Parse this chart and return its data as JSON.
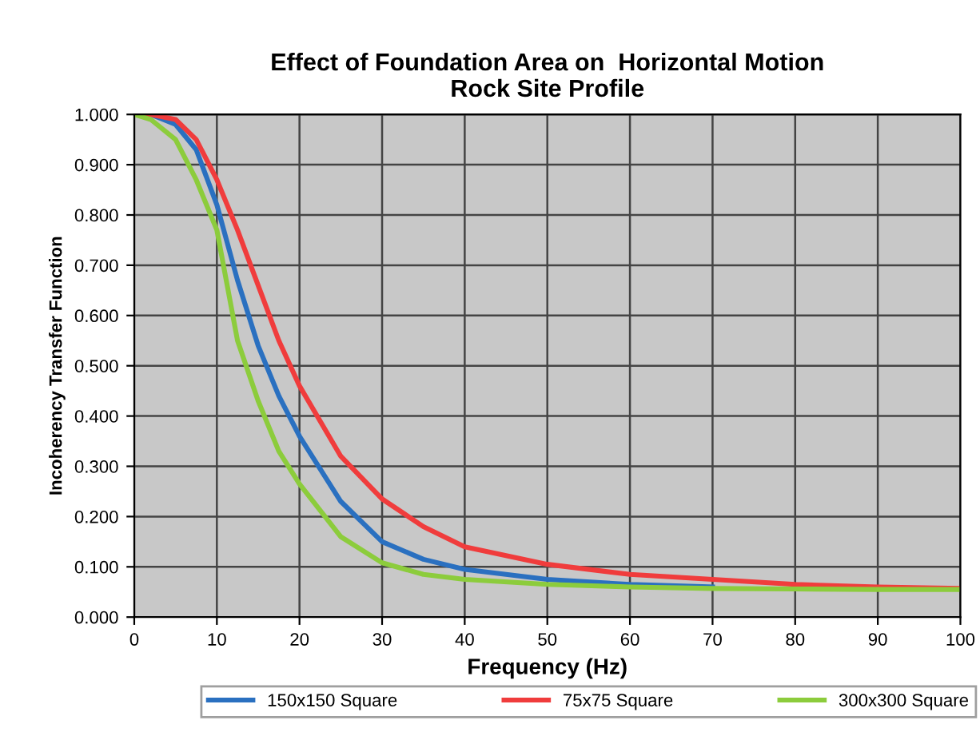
{
  "chart_data": {
    "type": "line",
    "title": "Effect of Foundation Area on  Horizontal Motion\nRock Site Profile",
    "xlabel": "Frequency (Hz)",
    "ylabel": "Incoherency Transfer Function",
    "xlim": [
      0,
      100
    ],
    "xticks": [
      0,
      10,
      20,
      30,
      40,
      50,
      60,
      70,
      80,
      90,
      100
    ],
    "ylim": [
      0,
      1
    ],
    "yticks": [
      {
        "value": 0,
        "label": "0.000"
      },
      {
        "value": 0.1,
        "label": "0.100"
      },
      {
        "value": 0.2,
        "label": "0.200"
      },
      {
        "value": 0.3,
        "label": "0.300"
      },
      {
        "value": 0.4,
        "label": "0.400"
      },
      {
        "value": 0.5,
        "label": "0.500"
      },
      {
        "value": 0.6,
        "label": "0.600"
      },
      {
        "value": 0.7,
        "label": "0.700"
      },
      {
        "value": 0.8,
        "label": "0.800"
      },
      {
        "value": 0.9,
        "label": "0.900"
      },
      {
        "value": 1,
        "label": "1.000"
      }
    ],
    "grid": true,
    "legend": "bottom",
    "marker": "none",
    "line_style": "solid",
    "series": [
      {
        "name": "150x150 Square",
        "color": "#2a70c0",
        "x": [
          0,
          2,
          5,
          7.5,
          10,
          12.5,
          15,
          17.5,
          20,
          25,
          30,
          35,
          40,
          50,
          60,
          70
        ],
        "values": [
          1.0,
          1.0,
          0.98,
          0.93,
          0.82,
          0.67,
          0.54,
          0.44,
          0.36,
          0.23,
          0.15,
          0.115,
          0.095,
          0.075,
          0.065,
          0.06
        ]
      },
      {
        "name": "75x75 Square",
        "color": "#f03c3c",
        "x": [
          0,
          2,
          5,
          7.5,
          10,
          12.5,
          15,
          17.5,
          20,
          25,
          30,
          35,
          40,
          50,
          60,
          70,
          80,
          90,
          100
        ],
        "values": [
          1.0,
          1.0,
          0.99,
          0.95,
          0.87,
          0.77,
          0.66,
          0.55,
          0.46,
          0.32,
          0.235,
          0.18,
          0.14,
          0.105,
          0.085,
          0.075,
          0.065,
          0.06,
          0.057
        ]
      },
      {
        "name": "300x300 Square",
        "color": "#8ccc3c",
        "x": [
          0,
          2,
          5,
          7.5,
          10,
          12.5,
          15,
          17.5,
          20,
          25,
          30,
          35,
          40,
          50,
          60,
          70,
          80,
          90,
          100
        ],
        "values": [
          1.0,
          0.99,
          0.95,
          0.87,
          0.77,
          0.55,
          0.43,
          0.33,
          0.265,
          0.16,
          0.108,
          0.085,
          0.075,
          0.065,
          0.06,
          0.057,
          0.056,
          0.055,
          0.055
        ]
      }
    ]
  }
}
